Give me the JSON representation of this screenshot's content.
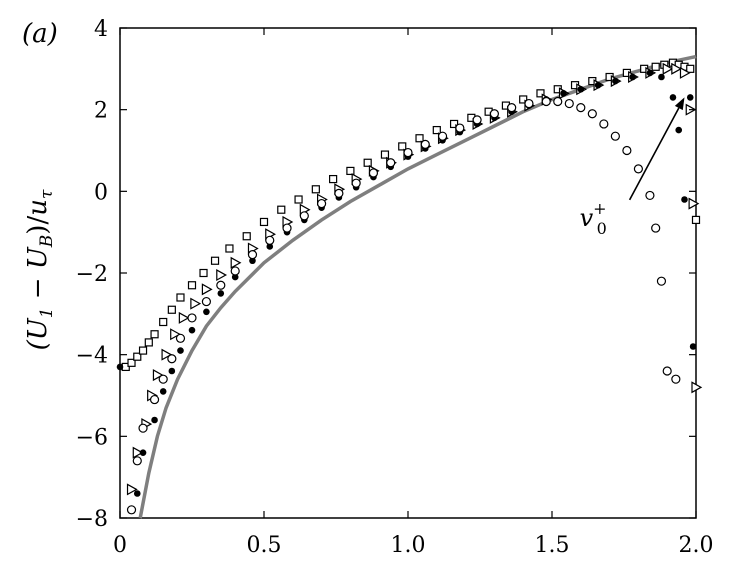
{
  "chart_data": {
    "type": "scatter",
    "panel_label": "(a)",
    "ylabel": "(Ū₁ − U_B)/u_τ",
    "ylabel_parts": {
      "open": "(",
      "U": "U",
      "sub1": "1",
      "minus": " − ",
      "UB": "U",
      "subB": "B",
      "close": ")/",
      "u": "u",
      "subtau": "τ"
    },
    "xlabel": "",
    "xlim": [
      0,
      2.0
    ],
    "ylim": [
      -8,
      4
    ],
    "xticks": [
      0,
      0.5,
      1.0,
      1.5,
      2.0
    ],
    "xtick_labels": [
      "0",
      "0.5",
      "1.0",
      "1.5",
      "2.0"
    ],
    "yticks": [
      -8,
      -6,
      -4,
      -2,
      0,
      2,
      4
    ],
    "ytick_labels": [
      "−8",
      "−6",
      "−4",
      "−2",
      "0",
      "2",
      "4"
    ],
    "annotation": {
      "text": "v",
      "sup": "+",
      "sub": "0",
      "target": [
        1.96,
        2.3
      ],
      "text_anchor": [
        1.7,
        -0.7
      ]
    },
    "curve": {
      "color": "#7f7f7f",
      "x": [
        0.07,
        0.1,
        0.13,
        0.16,
        0.2,
        0.25,
        0.3,
        0.35,
        0.4,
        0.5,
        0.6,
        0.7,
        0.8,
        0.9,
        1.0,
        1.1,
        1.2,
        1.3,
        1.4,
        1.5,
        1.6,
        1.7,
        1.8,
        1.9,
        2.0
      ],
      "y": [
        -8.0,
        -6.9,
        -6.0,
        -5.3,
        -4.6,
        -3.9,
        -3.3,
        -2.85,
        -2.45,
        -1.75,
        -1.2,
        -0.7,
        -0.25,
        0.15,
        0.55,
        0.9,
        1.25,
        1.6,
        1.95,
        2.25,
        2.5,
        2.75,
        2.95,
        3.15,
        3.3
      ]
    },
    "series": [
      {
        "marker": "square",
        "x": [
          0.02,
          0.04,
          0.06,
          0.08,
          0.1,
          0.12,
          0.15,
          0.18,
          0.21,
          0.25,
          0.29,
          0.33,
          0.38,
          0.44,
          0.5,
          0.56,
          0.62,
          0.68,
          0.74,
          0.8,
          0.86,
          0.92,
          0.98,
          1.04,
          1.1,
          1.16,
          1.22,
          1.28,
          1.34,
          1.4,
          1.46,
          1.52,
          1.58,
          1.64,
          1.7,
          1.76,
          1.82,
          1.86,
          1.89,
          1.92,
          1.94,
          1.96,
          1.98,
          2.0
        ],
        "y": [
          -4.3,
          -4.2,
          -4.05,
          -3.9,
          -3.7,
          -3.5,
          -3.2,
          -2.9,
          -2.6,
          -2.3,
          -2.0,
          -1.7,
          -1.4,
          -1.1,
          -0.75,
          -0.45,
          -0.2,
          0.05,
          0.3,
          0.5,
          0.7,
          0.9,
          1.1,
          1.3,
          1.5,
          1.65,
          1.8,
          1.95,
          2.1,
          2.25,
          2.4,
          2.5,
          2.6,
          2.7,
          2.8,
          2.9,
          3.0,
          3.05,
          3.1,
          3.15,
          3.1,
          3.05,
          3.0,
          -0.7
        ]
      },
      {
        "marker": "triangle-right",
        "x": [
          0.04,
          0.06,
          0.09,
          0.11,
          0.13,
          0.16,
          0.19,
          0.22,
          0.26,
          0.3,
          0.35,
          0.4,
          0.46,
          0.52,
          0.58,
          0.64,
          0.7,
          0.76,
          0.82,
          0.88,
          0.94,
          1.0,
          1.06,
          1.12,
          1.18,
          1.24,
          1.3,
          1.36,
          1.42,
          1.48,
          1.54,
          1.6,
          1.66,
          1.72,
          1.78,
          1.84,
          1.9,
          1.93,
          1.96,
          1.98,
          1.99,
          2.0
        ],
        "y": [
          -7.3,
          -6.4,
          -5.7,
          -5.0,
          -4.5,
          -4.0,
          -3.5,
          -3.1,
          -2.75,
          -2.4,
          -2.05,
          -1.75,
          -1.4,
          -1.05,
          -0.75,
          -0.45,
          -0.2,
          0.05,
          0.3,
          0.5,
          0.7,
          0.9,
          1.1,
          1.3,
          1.5,
          1.65,
          1.8,
          1.95,
          2.1,
          2.25,
          2.4,
          2.5,
          2.6,
          2.7,
          2.8,
          2.9,
          3.0,
          3.0,
          2.9,
          2.0,
          -0.3,
          -4.8
        ]
      },
      {
        "marker": "filled-circle",
        "x": [
          0.0,
          0.06,
          0.08,
          0.12,
          0.15,
          0.18,
          0.21,
          0.25,
          0.3,
          0.35,
          0.4,
          0.46,
          0.52,
          0.58,
          0.64,
          0.7,
          0.76,
          0.82,
          0.88,
          0.94,
          1.0,
          1.06,
          1.12,
          1.18,
          1.24,
          1.3,
          1.36,
          1.42,
          1.48,
          1.54,
          1.6,
          1.66,
          1.72,
          1.78,
          1.84,
          1.88,
          1.92,
          1.94,
          1.96,
          1.98,
          1.99
        ],
        "y": [
          -4.3,
          -7.4,
          -6.4,
          -5.6,
          -4.9,
          -4.4,
          -3.9,
          -3.4,
          -2.95,
          -2.5,
          -2.1,
          -1.7,
          -1.35,
          -1.0,
          -0.7,
          -0.4,
          -0.15,
          0.1,
          0.35,
          0.6,
          0.85,
          1.05,
          1.25,
          1.45,
          1.65,
          1.8,
          1.95,
          2.1,
          2.25,
          2.4,
          2.5,
          2.6,
          2.7,
          2.8,
          2.9,
          2.8,
          2.3,
          1.5,
          -0.2,
          2.3,
          -3.8
        ]
      },
      {
        "marker": "open-circle",
        "x": [
          0.04,
          0.06,
          0.08,
          0.12,
          0.15,
          0.18,
          0.21,
          0.25,
          0.3,
          0.35,
          0.4,
          0.46,
          0.52,
          0.58,
          0.64,
          0.7,
          0.76,
          0.82,
          0.88,
          0.94,
          1.0,
          1.06,
          1.12,
          1.18,
          1.24,
          1.3,
          1.36,
          1.42,
          1.48,
          1.52,
          1.56,
          1.6,
          1.64,
          1.68,
          1.72,
          1.76,
          1.8,
          1.84,
          1.86,
          1.88,
          1.9,
          1.93
        ],
        "y": [
          -7.8,
          -6.6,
          -5.8,
          -5.1,
          -4.6,
          -4.1,
          -3.6,
          -3.1,
          -2.7,
          -2.3,
          -1.95,
          -1.55,
          -1.2,
          -0.9,
          -0.6,
          -0.3,
          -0.05,
          0.2,
          0.45,
          0.7,
          0.95,
          1.15,
          1.35,
          1.55,
          1.75,
          1.9,
          2.05,
          2.15,
          2.2,
          2.2,
          2.15,
          2.05,
          1.9,
          1.65,
          1.35,
          1.0,
          0.55,
          -0.1,
          -0.9,
          -2.2,
          -4.4,
          -4.6
        ]
      }
    ]
  }
}
